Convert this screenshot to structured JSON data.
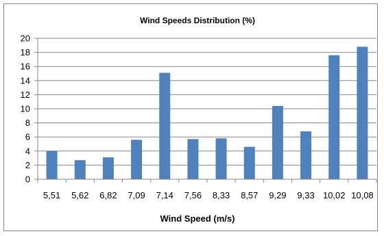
{
  "chart_data": {
    "type": "bar",
    "title": "Wind Speeds Distribution (%)",
    "xlabel": "Wind Speed (m/s)",
    "ylabel": "",
    "categories": [
      "5,51",
      "5,62",
      "6,82",
      "7,09",
      "7,14",
      "7,56",
      "8,33",
      "8,57",
      "9,29",
      "9,33",
      "10,02",
      "10,08"
    ],
    "values": [
      4.0,
      2.7,
      3.1,
      5.6,
      15.1,
      5.7,
      5.8,
      4.6,
      10.4,
      6.8,
      17.6,
      18.8
    ],
    "ylim": [
      0,
      20
    ],
    "yticks": [
      "0",
      "2",
      "4",
      "6",
      "8",
      "10",
      "12",
      "14",
      "16",
      "18",
      "20"
    ],
    "grid": true,
    "legend": "none",
    "bar_color": "#4f81bd",
    "grid_color": "#868686"
  }
}
